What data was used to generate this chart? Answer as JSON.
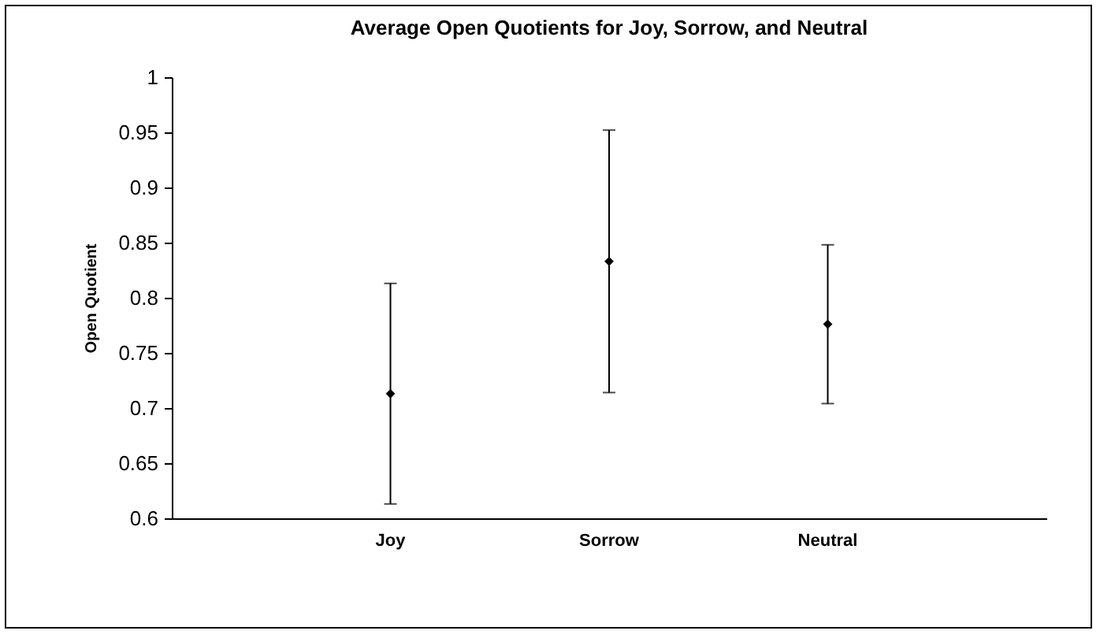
{
  "chart_data": {
    "type": "scatter",
    "title": "Average Open Quotients for Joy, Sorrow, and Neutral",
    "ylabel": "Open Quotient",
    "categories": [
      "Joy",
      "Sorrow",
      "Neutral"
    ],
    "values": [
      0.713,
      0.833,
      0.776
    ],
    "errors": [
      0.1,
      0.119,
      0.072
    ],
    "color": "#000000",
    "marker": "diamond",
    "ylim": [
      0.6,
      1
    ],
    "yticks": [
      0.6,
      0.65,
      0.7,
      0.75,
      0.8,
      0.85,
      0.9,
      0.95,
      1
    ],
    "grid": false
  }
}
